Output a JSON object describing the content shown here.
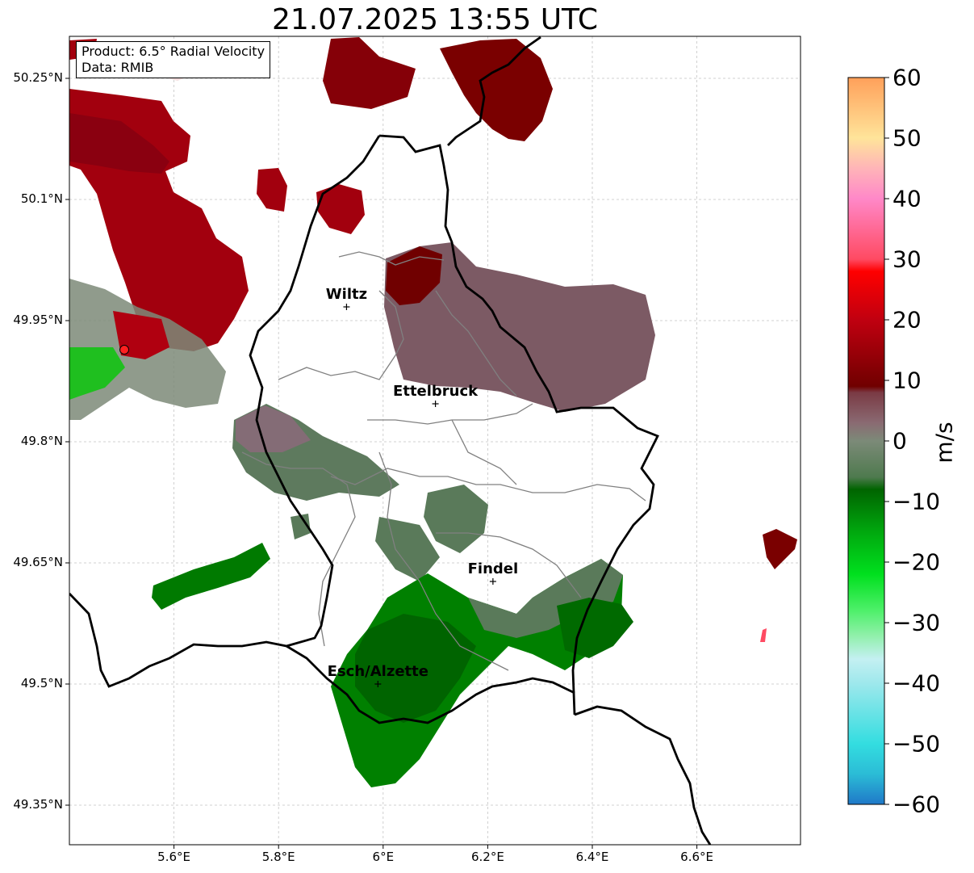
{
  "title": "21.07.2025 13:55 UTC",
  "info": {
    "product": "Product: 6.5° Radial Velocity",
    "data_source": "Data: RMIB"
  },
  "axes": {
    "x_ticks": [
      "5.6°E",
      "5.8°E",
      "6°E",
      "6.2°E",
      "6.4°E",
      "6.6°E"
    ],
    "y_ticks": [
      "50.25°N",
      "50.1°N",
      "49.95°N",
      "49.8°N",
      "49.65°N",
      "49.5°N",
      "49.35°N"
    ],
    "lon_range": [
      5.4,
      6.8
    ],
    "lat_range": [
      49.3,
      50.3
    ]
  },
  "cities": [
    {
      "name": "Wiltz",
      "lon": 5.93,
      "lat": 49.967
    },
    {
      "name": "Ettelbruck",
      "lon": 6.1,
      "lat": 49.847
    },
    {
      "name": "Findel",
      "lon": 6.21,
      "lat": 49.627
    },
    {
      "name": "Esch/Alzette",
      "lon": 5.99,
      "lat": 49.5
    }
  ],
  "radar_site": {
    "lon": 5.505,
    "lat": 49.914
  },
  "colorbar": {
    "unit": "m/s",
    "ticks": [
      "60",
      "50",
      "40",
      "30",
      "20",
      "10",
      "0",
      "−10",
      "−20",
      "−30",
      "−40",
      "−50",
      "−60"
    ],
    "min": -60,
    "max": 60,
    "stops": [
      {
        "v": -60,
        "c": "#1f78c8"
      },
      {
        "v": -55,
        "c": "#2bbcd6"
      },
      {
        "v": -50,
        "c": "#33dde0"
      },
      {
        "v": -40,
        "c": "#9ee8ec"
      },
      {
        "v": -36,
        "c": "#c4f0f2"
      },
      {
        "v": -32,
        "c": "#8ef0a8"
      },
      {
        "v": -28,
        "c": "#4ef06a"
      },
      {
        "v": -22,
        "c": "#00e01e"
      },
      {
        "v": -15,
        "c": "#00a80e"
      },
      {
        "v": -8,
        "c": "#006400"
      },
      {
        "v": -6,
        "c": "#4e7a4e"
      },
      {
        "v": 0,
        "c": "#7c8a78"
      },
      {
        "v": 3,
        "c": "#8a6a72"
      },
      {
        "v": 8,
        "c": "#7a3a44"
      },
      {
        "v": 9,
        "c": "#700000"
      },
      {
        "v": 20,
        "c": "#c00010"
      },
      {
        "v": 28,
        "c": "#ff0000"
      },
      {
        "v": 30,
        "c": "#ff4a62"
      },
      {
        "v": 40,
        "c": "#ff88c8"
      },
      {
        "v": 45,
        "c": "#ffb4b8"
      },
      {
        "v": 50,
        "c": "#ffe49a"
      },
      {
        "v": 60,
        "c": "#ffa05a"
      }
    ]
  },
  "colors": {
    "inbound_dark": "#006a00",
    "inbound_mid": "#5a7a5a",
    "outbound_dark": "#7a0000",
    "outbound_mid": "#b00010",
    "outbound_muted": "#7c5a64",
    "border": "#000000",
    "canton": "#808080",
    "grid": "#c0c0c0"
  }
}
